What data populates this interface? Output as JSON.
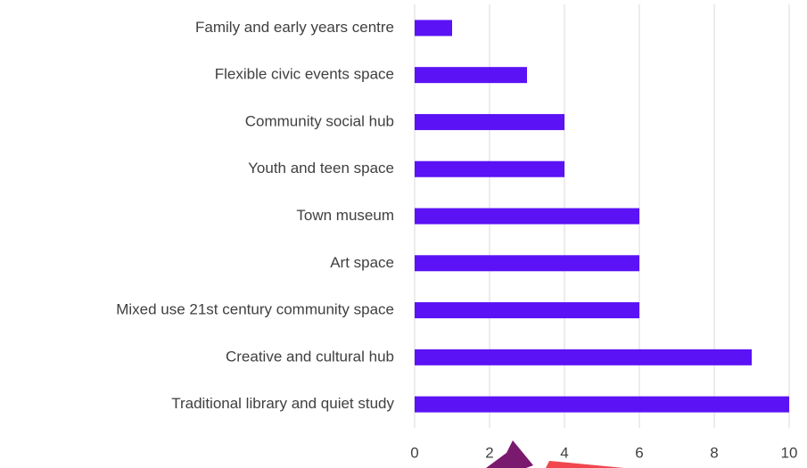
{
  "chart_data": {
    "type": "barh",
    "categories": [
      "Family and early years centre",
      "Flexible civic events space",
      "Community social hub",
      "Youth and teen space",
      "Town museum",
      "Art space",
      "Mixed use 21st century community space",
      "Creative and cultural hub",
      "Traditional library and quiet study"
    ],
    "values": [
      1,
      3,
      4,
      4,
      6,
      6,
      6,
      9,
      10
    ],
    "color": "#5b12f5",
    "xlim": [
      0,
      10
    ],
    "xticks": [
      0,
      2,
      4,
      6,
      8,
      10
    ],
    "grid": true
  }
}
